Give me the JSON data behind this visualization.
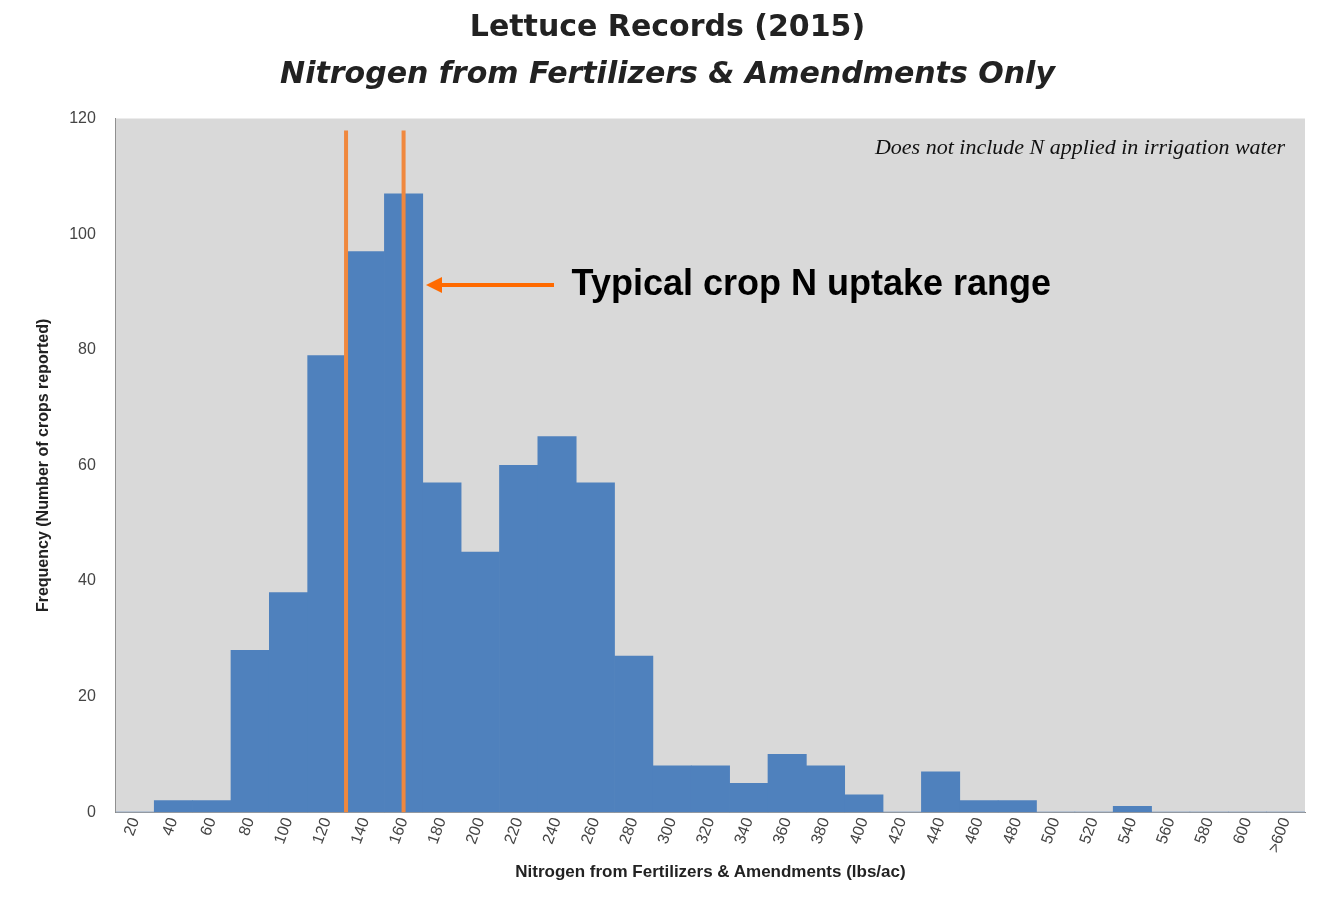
{
  "chart_data": {
    "type": "histogram",
    "title": "Lettuce Records (2015)",
    "subtitle": "Nitrogen from Fertilizers & Amendments Only",
    "xlabel": "Nitrogen from Fertilizers & Amendments (lbs/ac)",
    "ylabel": "Frequency (Number of crops reported)",
    "bins": [
      10,
      30,
      50,
      70,
      90,
      110,
      130,
      150,
      170,
      190,
      210,
      230,
      250,
      270,
      290,
      310,
      330,
      350,
      370,
      390,
      410,
      430,
      450,
      470,
      490,
      510,
      530,
      550,
      570,
      590,
      610,
      630
    ],
    "values": [
      0,
      2,
      2,
      28,
      38,
      79,
      97,
      107,
      57,
      45,
      60,
      65,
      57,
      27,
      8,
      8,
      5,
      10,
      8,
      3,
      0,
      7,
      2,
      2,
      0,
      0,
      1,
      0,
      0,
      0,
      0
    ],
    "color": "#4f81bd",
    "xlim": [
      10,
      630
    ],
    "xticks": [
      20,
      40,
      60,
      80,
      100,
      120,
      140,
      160,
      180,
      200,
      220,
      240,
      260,
      280,
      300,
      320,
      340,
      360,
      380,
      400,
      420,
      440,
      460,
      480,
      500,
      520,
      540,
      560,
      580,
      600,
      {
        "value": 620,
        "label": ">600"
      }
    ],
    "ylim": [
      0,
      120
    ],
    "yticks": [
      0,
      20,
      40,
      60,
      80,
      100,
      120
    ],
    "grid": false,
    "legend": false,
    "ref_lines": [
      {
        "axis": "x",
        "value": 130,
        "color": "#f0883e"
      },
      {
        "axis": "x",
        "value": 160,
        "color": "#f0883e"
      }
    ],
    "annotations": [
      "Does not include N applied in irrigation water",
      "Typical crop N uptake range"
    ]
  }
}
